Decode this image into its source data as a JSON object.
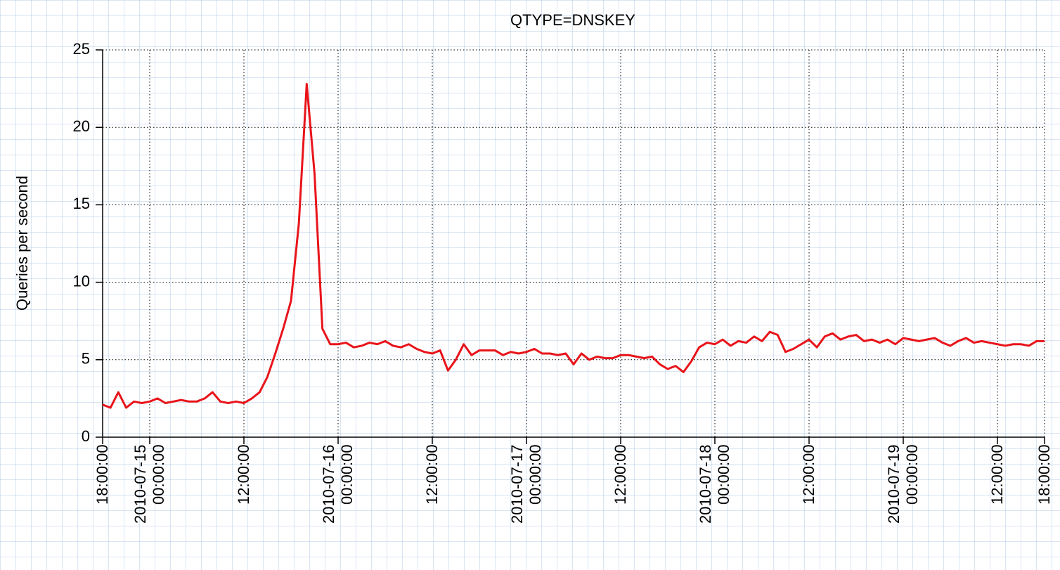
{
  "chart_data": {
    "type": "line",
    "title": "QTYPE=DNSKEY",
    "y_label": "Queries per second",
    "x": [
      0,
      1,
      2,
      3,
      4,
      5,
      6,
      7,
      8,
      9,
      10,
      11,
      12,
      13,
      14,
      15,
      16,
      17,
      18,
      19,
      20,
      21,
      22,
      23,
      24,
      25,
      26,
      27,
      28,
      29,
      30,
      31,
      32,
      33,
      34,
      35,
      36,
      37,
      38,
      39,
      40,
      41,
      42,
      43,
      44,
      45,
      46,
      47,
      48,
      49,
      50,
      51,
      52,
      53,
      54,
      55,
      56,
      57,
      58,
      59,
      60,
      61,
      62,
      63,
      64,
      65,
      66,
      67,
      68,
      69,
      70,
      71,
      72,
      73,
      74,
      75,
      76,
      77,
      78,
      79,
      80,
      81,
      82,
      83,
      84,
      85,
      86,
      87,
      88,
      89,
      90,
      91,
      92,
      93,
      94,
      95,
      96,
      97,
      98,
      99,
      100,
      101,
      102,
      103,
      104,
      105,
      106,
      107,
      108,
      109,
      110,
      111,
      112,
      113,
      114,
      115,
      116,
      117,
      118,
      119,
      120
    ],
    "values": [
      2.1,
      1.9,
      2.9,
      1.9,
      2.3,
      2.2,
      2.3,
      2.5,
      2.2,
      2.3,
      2.4,
      2.3,
      2.3,
      2.5,
      2.9,
      2.3,
      2.2,
      2.3,
      2.2,
      2.5,
      2.9,
      3.9,
      5.4,
      7.0,
      8.8,
      13.8,
      22.8,
      17.0,
      7.0,
      6.0,
      6.0,
      6.1,
      5.8,
      5.9,
      6.1,
      6.0,
      6.2,
      5.9,
      5.8,
      6.0,
      5.7,
      5.5,
      5.4,
      5.6,
      4.3,
      5.0,
      6.0,
      5.3,
      5.6,
      5.6,
      5.6,
      5.3,
      5.5,
      5.4,
      5.5,
      5.7,
      5.4,
      5.4,
      5.3,
      5.4,
      4.7,
      5.4,
      5.0,
      5.2,
      5.1,
      5.1,
      5.3,
      5.3,
      5.2,
      5.1,
      5.2,
      4.7,
      4.4,
      4.6,
      4.2,
      4.9,
      5.8,
      6.1,
      6.0,
      6.3,
      5.9,
      6.2,
      6.1,
      6.5,
      6.2,
      6.8,
      6.6,
      5.5,
      5.7,
      6.0,
      6.3,
      5.8,
      6.5,
      6.7,
      6.3,
      6.5,
      6.6,
      6.2,
      6.3,
      6.1,
      6.3,
      6.0,
      6.4,
      6.3,
      6.2,
      6.3,
      6.4,
      6.1,
      5.9,
      6.2,
      6.4,
      6.1,
      6.2,
      6.1,
      6.0,
      5.9,
      6.0,
      6.0,
      5.9,
      6.2,
      6.2
    ],
    "color": "#e8141a",
    "xlim": [
      0,
      120
    ],
    "xticks": [
      {
        "value": 0,
        "label": "18:00:00"
      },
      {
        "value": 6,
        "label": "2010-07-15\n00:00:00"
      },
      {
        "value": 18,
        "label": "12:00:00"
      },
      {
        "value": 30,
        "label": "2010-07-16\n00:00:00"
      },
      {
        "value": 42,
        "label": "12:00:00"
      },
      {
        "value": 54,
        "label": "2010-07-17\n00:00:00"
      },
      {
        "value": 66,
        "label": "12:00:00"
      },
      {
        "value": 78,
        "label": "2010-07-18\n00:00:00"
      },
      {
        "value": 90,
        "label": "12:00:00"
      },
      {
        "value": 102,
        "label": "2010-07-19\n00:00:00"
      },
      {
        "value": 114,
        "label": "12:00:00"
      },
      {
        "value": 120,
        "label": "18:00:00"
      }
    ],
    "ylim": [
      0,
      25
    ],
    "yticks": [
      0,
      5,
      10,
      15,
      20,
      25
    ],
    "grid": true
  }
}
